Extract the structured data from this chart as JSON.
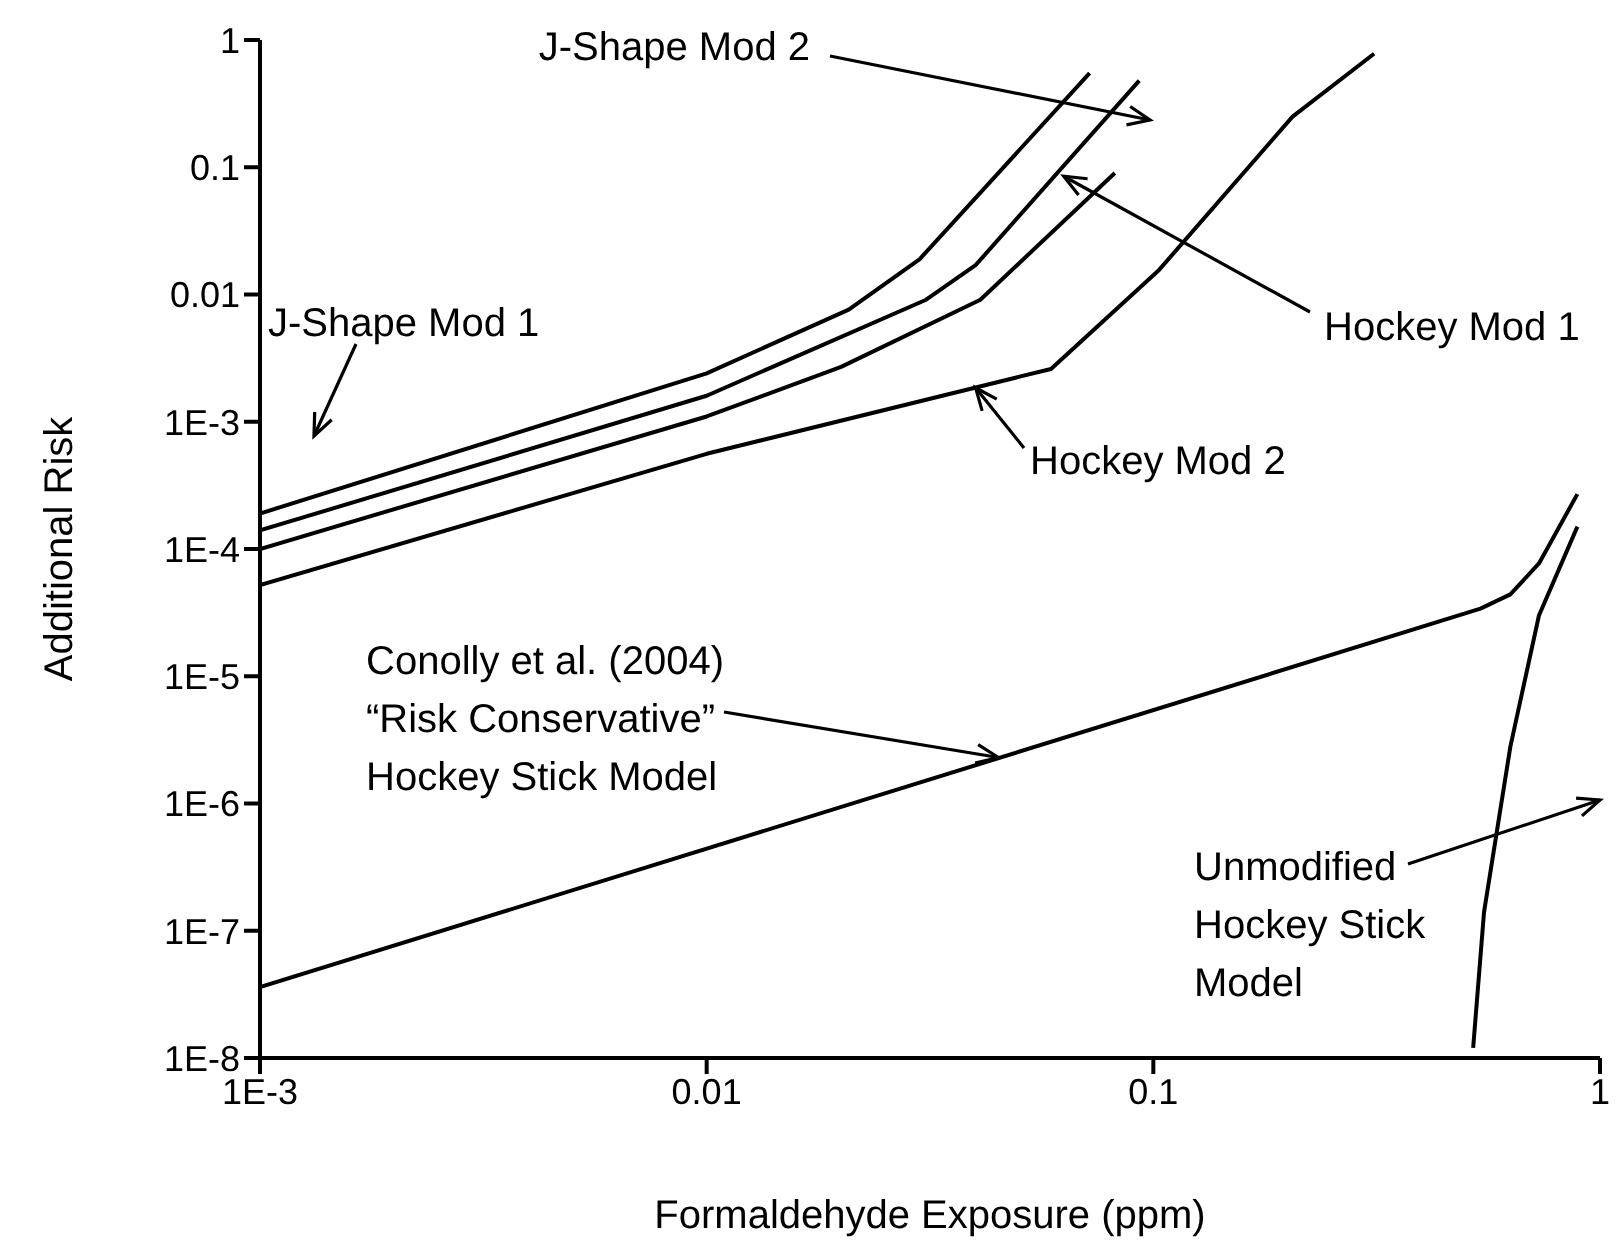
{
  "chart_data": {
    "type": "line",
    "xlabel": "Formaldehyde Exposure (ppm)",
    "ylabel": "Additional Risk",
    "log": "xy",
    "xlim": [
      0.001,
      1
    ],
    "xticks": [
      {
        "value": 0.001,
        "label": "1E-3"
      },
      0.01,
      0.1,
      1
    ],
    "ylim": [
      1e-08,
      1
    ],
    "yticks": [
      {
        "value": 1e-08,
        "label": "1E-8"
      },
      {
        "value": 1e-07,
        "label": "1E-7"
      },
      {
        "value": 1e-06,
        "label": "1E-6"
      },
      {
        "value": 1e-05,
        "label": "1E-5"
      },
      {
        "value": 0.0001,
        "label": "1E-4"
      },
      {
        "value": 0.001,
        "label": "1E-3"
      },
      0.01,
      0.1,
      1
    ],
    "grid": false,
    "legend": false,
    "marker": "none",
    "line_style": "solid",
    "series": [
      {
        "color": "#000000",
        "x": [
          0.001,
          0.01,
          0.0208,
          0.03,
          0.072
        ],
        "values": [
          0.00019,
          0.0024,
          0.0076,
          0.019,
          0.55
        ]
      },
      {
        "color": "#000000",
        "x": [
          0.001,
          0.01,
          0.031,
          0.04,
          0.093
        ],
        "values": [
          0.00014,
          0.0016,
          0.0091,
          0.017,
          0.48
        ]
      },
      {
        "color": "#000000",
        "x": [
          0.001,
          0.01,
          0.02,
          0.041,
          0.082
        ],
        "values": [
          0.0001,
          0.0011,
          0.0027,
          0.0091,
          0.09
        ]
      },
      {
        "color": "#000000",
        "x": [
          0.001,
          0.01,
          0.059,
          0.103,
          0.205,
          0.312
        ],
        "values": [
          5.2e-05,
          0.00056,
          0.0026,
          0.0156,
          0.25,
          0.78
        ]
      },
      {
        "color": "#000000",
        "x": [
          0.001,
          0.54,
          0.63,
          0.73,
          0.89
        ],
        "values": [
          3.6e-08,
          3.4e-05,
          4.4e-05,
          7.7e-05,
          0.00027
        ]
      },
      {
        "color": "#000000",
        "x": [
          0.52,
          0.55,
          0.63,
          0.73,
          0.89
        ],
        "values": [
          1.2e-08,
          1.4e-07,
          2.8e-06,
          3e-05,
          0.00015
        ]
      }
    ],
    "annotations": [
      "J-Shape Mod 2",
      "J-Shape Mod 1",
      {
        "text": "Hockey Mod 1",
        "x": 0.063,
        "y": 0.085
      },
      {
        "text": "Hockey Mod 2",
        "x": 0.04,
        "y": 0.00185
      },
      {
        "text": "Conolly et al. (2004)\n“Risk Conservative”\nHockey Stick Model",
        "x": 0.045,
        "y": 2.3e-06
      },
      "Unmodified\nHockey Stick\nModel"
    ]
  }
}
